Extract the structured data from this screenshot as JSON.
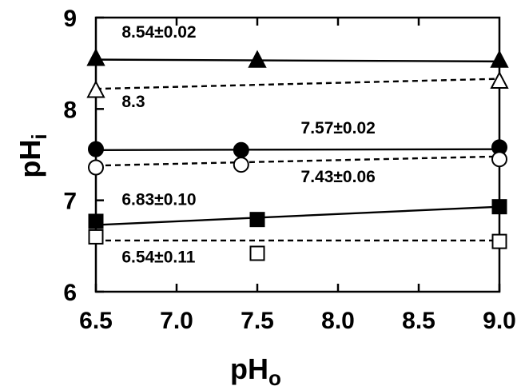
{
  "chart_data": {
    "type": "scatter",
    "title": "",
    "xlabel": "pH",
    "xlabel_subscript": "o",
    "ylabel": "pH",
    "ylabel_subscript": "i",
    "xlim": [
      6.5,
      9.0
    ],
    "ylim": [
      6,
      9
    ],
    "x_ticks": [
      "6.5",
      "7.0",
      "7.5",
      "8.0",
      "8.5",
      "9.0"
    ],
    "y_ticks": [
      "6",
      "7",
      "8",
      "9"
    ],
    "grid": false,
    "series": [
      {
        "marker": "filled-triangle",
        "line": "solid",
        "x": [
          6.5,
          7.5,
          9.0
        ],
        "y": [
          8.55,
          8.53,
          8.53
        ],
        "fit": [
          [
            6.5,
            8.54
          ],
          [
            9.0,
            8.52
          ]
        ]
      },
      {
        "marker": "open-triangle",
        "line": "dashed",
        "x": [
          6.5,
          9.0
        ],
        "y": [
          8.2,
          8.3
        ],
        "fit": [
          [
            6.5,
            8.22
          ],
          [
            9.0,
            8.33
          ]
        ]
      },
      {
        "marker": "filled-circle",
        "line": "solid",
        "x": [
          6.5,
          7.4,
          9.0
        ],
        "y": [
          7.56,
          7.55,
          7.58
        ],
        "fit": [
          [
            6.5,
            7.55
          ],
          [
            9.0,
            7.56
          ]
        ]
      },
      {
        "marker": "open-circle",
        "line": "dashed",
        "x": [
          6.5,
          7.4,
          9.0
        ],
        "y": [
          7.36,
          7.39,
          7.45
        ],
        "fit": [
          [
            6.5,
            7.38
          ],
          [
            9.0,
            7.48
          ]
        ]
      },
      {
        "marker": "filled-square",
        "line": "solid",
        "x": [
          6.5,
          7.5,
          9.0
        ],
        "y": [
          6.77,
          6.79,
          6.93
        ],
        "fit": [
          [
            6.5,
            6.73
          ],
          [
            9.0,
            6.93
          ]
        ]
      },
      {
        "marker": "open-square",
        "line": "dashed",
        "x": [
          6.5,
          7.5,
          9.0
        ],
        "y": [
          6.6,
          6.42,
          6.55
        ],
        "fit": [
          [
            6.5,
            6.56
          ],
          [
            9.0,
            6.56
          ]
        ]
      }
    ],
    "annotations": [
      {
        "text": "8.54±0.02",
        "x": 6.66,
        "y": 8.78
      },
      {
        "text": "8.3",
        "x": 6.66,
        "y": 8.02
      },
      {
        "text": "7.57±0.02",
        "x": 7.77,
        "y": 7.73
      },
      {
        "text": "7.43±0.06",
        "x": 7.77,
        "y": 7.2
      },
      {
        "text": "6.83±0.10",
        "x": 6.66,
        "y": 6.95
      },
      {
        "text": "6.54±0.11",
        "x": 6.66,
        "y": 6.32
      }
    ]
  }
}
